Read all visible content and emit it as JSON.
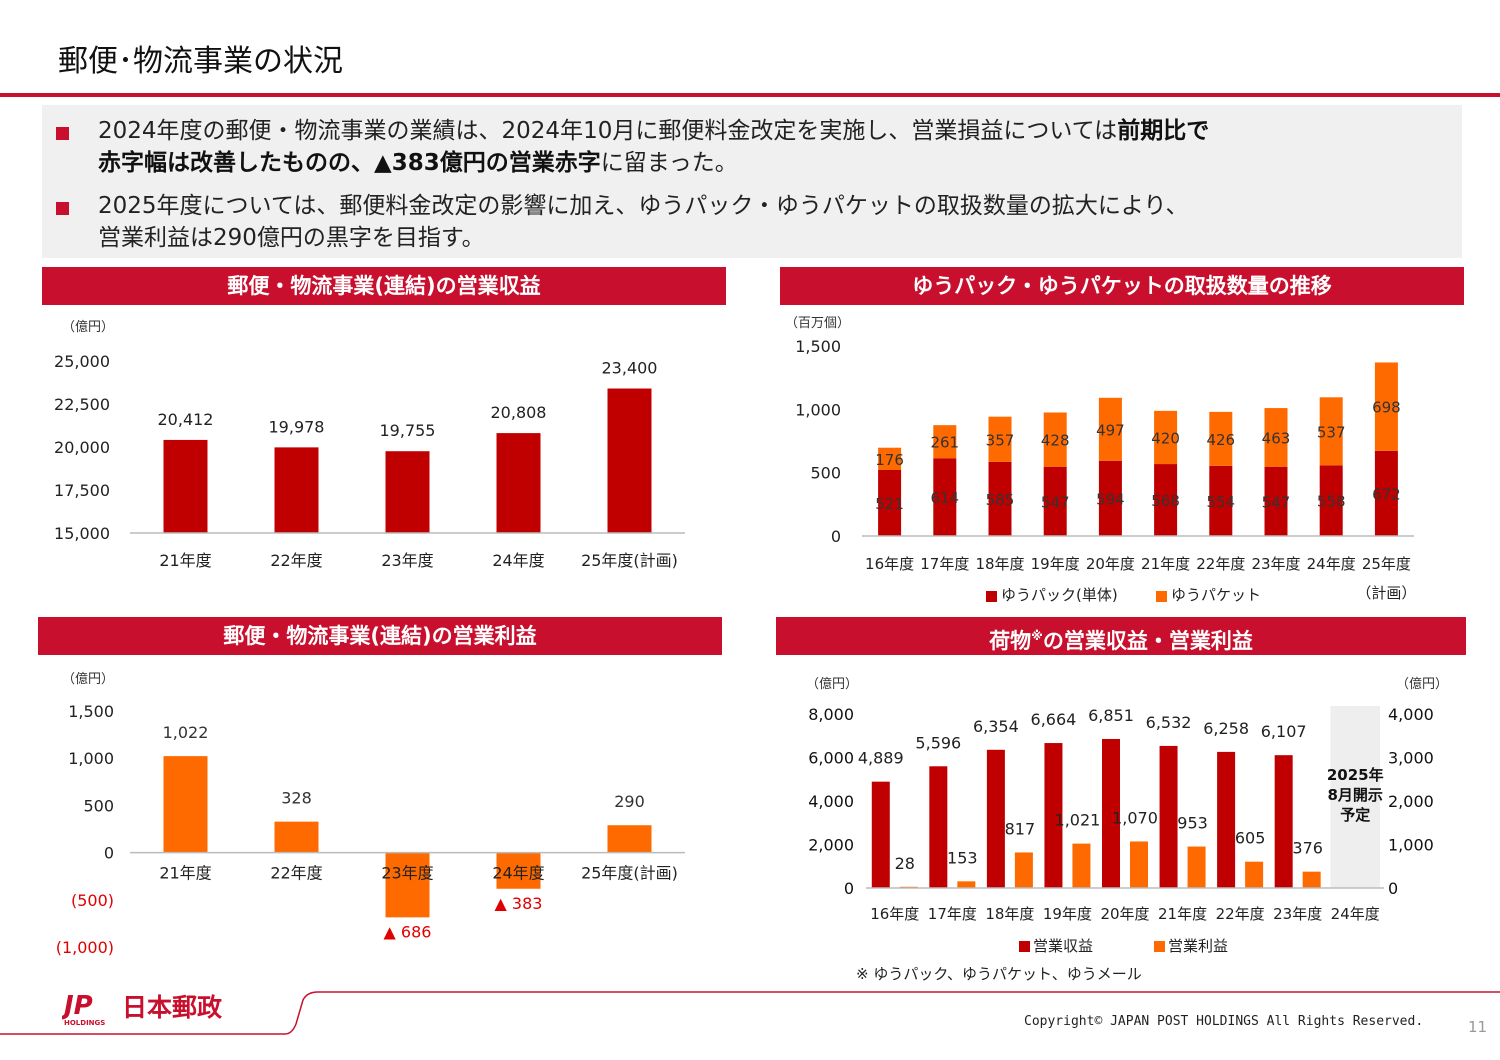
{
  "page": {
    "title": "郵便･物流事業の状況",
    "page_number": "11",
    "copyright": "Copyright© JAPAN POST HOLDINGS All Rights Reserved.",
    "logo_text": "日本郵政",
    "logo_mark": "JP",
    "logo_sub": "HOLDINGS"
  },
  "colors": {
    "accent": "#c8102e",
    "dark_red": "#c00000",
    "orange": "#ff6a00"
  },
  "summary": {
    "b1_pre": "2024年度の郵便・物流事業の業績は、2024年10月に郵便料金改定を実施し、営業損益については",
    "b1_bold1": "前期比で",
    "b1_bold2": "赤字幅は改善したものの、▲383億円の営業赤字",
    "b1_post": "に留まった。",
    "b2_line1": "2025年度については、郵便料金改定の影響に加え、ゆうパック・ゆうパケットの取扱数量の拡大により、",
    "b2_line2": "営業利益は290億円の黒字を目指す。"
  },
  "chart_data": [
    {
      "id": "revenue",
      "type": "bar",
      "title": "郵便・物流事業(連結)の営業収益",
      "unit": "（億円）",
      "categories": [
        "21年度",
        "22年度",
        "23年度",
        "24年度",
        "25年度(計画)"
      ],
      "values": [
        20412,
        19978,
        19755,
        20808,
        23400
      ],
      "labels": [
        "20,412",
        "19,978",
        "19,755",
        "20,808",
        "23,400"
      ],
      "ylim": [
        15000,
        25000
      ],
      "yticks": [
        15000,
        17500,
        20000,
        22500,
        25000
      ],
      "ytick_labels": [
        "15,000",
        "17,500",
        "20,000",
        "22,500",
        "25,000"
      ],
      "color": "#c00000"
    },
    {
      "id": "volume",
      "type": "bar",
      "stacked": true,
      "title": "ゆうパック・ゆうパケットの取扱数量の推移",
      "unit": "（百万個）",
      "categories": [
        "16年度",
        "17年度",
        "18年度",
        "19年度",
        "20年度",
        "21年度",
        "22年度",
        "23年度",
        "24年度",
        "25年度"
      ],
      "category_note": "（計画）",
      "series": [
        {
          "name": "ゆうパック(単体)",
          "color": "#c00000",
          "values": [
            521,
            614,
            585,
            547,
            594,
            568,
            554,
            547,
            558,
            672
          ]
        },
        {
          "name": "ゆうパケット",
          "color": "#ff6a00",
          "values": [
            176,
            261,
            357,
            428,
            497,
            420,
            426,
            463,
            537,
            698
          ]
        }
      ],
      "ylim": [
        0,
        1500
      ],
      "yticks": [
        0,
        500,
        1000,
        1500
      ],
      "ytick_labels": [
        "0",
        "500",
        "1,000",
        "1,500"
      ],
      "legend": "bottom"
    },
    {
      "id": "op_income",
      "type": "bar",
      "title": "郵便・物流事業(連結)の営業利益",
      "unit": "（億円）",
      "categories": [
        "21年度",
        "22年度",
        "23年度",
        "24年度",
        "25年度(計画)"
      ],
      "values": [
        1022,
        328,
        -686,
        -383,
        290
      ],
      "labels": [
        "1,022",
        "328",
        "▲ 686",
        "▲ 383",
        "290"
      ],
      "ylim": [
        -1000,
        1500
      ],
      "yticks": [
        -1000,
        -500,
        0,
        500,
        1000,
        1500
      ],
      "ytick_labels": [
        "(1,000)",
        "(500)",
        "0",
        "500",
        "1,000",
        "1,500"
      ],
      "color": "#ff6a00",
      "negative_label_color": "#e00000"
    },
    {
      "id": "parcel",
      "type": "bar",
      "title_pre": "荷物",
      "title_sup": "※",
      "title_post": "の営業収益・営業利益",
      "unit_left": "（億円）",
      "unit_right": "（億円）",
      "categories": [
        "16年度",
        "17年度",
        "18年度",
        "19年度",
        "20年度",
        "21年度",
        "22年度",
        "23年度",
        "24年度"
      ],
      "series": [
        {
          "name": "営業収益",
          "axis": "left",
          "color": "#c00000",
          "values": [
            4889,
            5596,
            6354,
            6664,
            6851,
            6532,
            6258,
            6107,
            null
          ],
          "labels": [
            "4,889",
            "5,596",
            "6,354",
            "6,664",
            "6,851",
            "6,532",
            "6,258",
            "6,107",
            ""
          ]
        },
        {
          "name": "営業利益",
          "axis": "right",
          "color": "#ff6a00",
          "values": [
            28,
            153,
            817,
            1021,
            1070,
            953,
            605,
            376,
            null
          ],
          "labels": [
            "28",
            "153",
            "817",
            "1,021",
            "1,070",
            "953",
            "605",
            "376",
            ""
          ]
        }
      ],
      "ylim_left": [
        0,
        8000
      ],
      "yticks_left": [
        0,
        2000,
        4000,
        6000,
        8000
      ],
      "ytick_labels_left": [
        "0",
        "2,000",
        "4,000",
        "6,000",
        "8,000"
      ],
      "ylim_right": [
        0,
        4000
      ],
      "yticks_right": [
        0,
        1000,
        2000,
        3000,
        4000
      ],
      "ytick_labels_right": [
        "0",
        "1,000",
        "2,000",
        "3,000",
        "4,000"
      ],
      "placeholder_lines": [
        "2025年",
        "8月開示",
        "予定"
      ],
      "note": "※ ゆうパック、ゆうパケット、ゆうメール",
      "legend": "bottom"
    }
  ]
}
